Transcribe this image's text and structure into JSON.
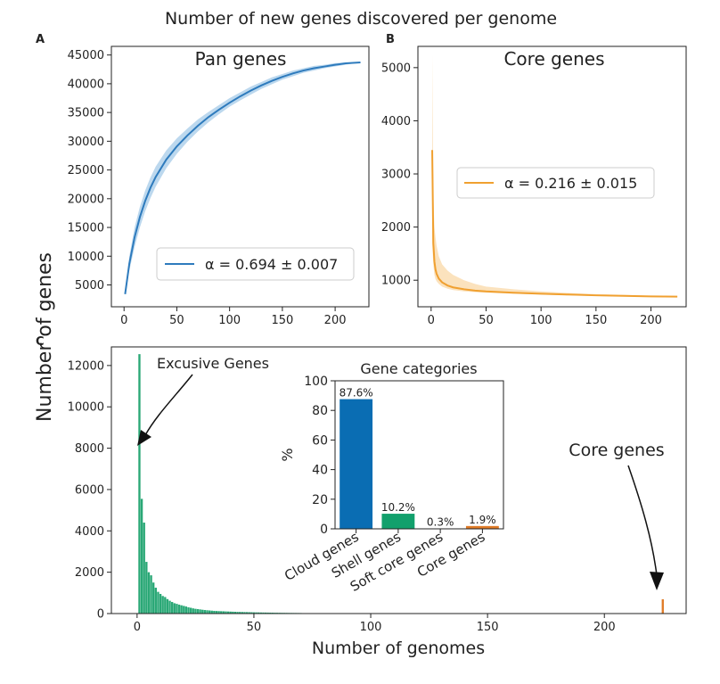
{
  "figure": {
    "suptitle": "Number of new genes discovered per genome",
    "shared_ylabel": "Number of genes",
    "colors": {
      "pan": "#2e7bbd",
      "pan_band": "#bcd8ee",
      "core": "#f0a030",
      "core_band": "#fbe2bd",
      "hist": "#2aa876",
      "core_bar": "#e07b27",
      "cloud_bar": "#0a6db3",
      "shell_bar": "#12a06c",
      "soft_bar": "#e07b27",
      "corecat_bar": "#e07b27"
    }
  },
  "chart_data": [
    {
      "panel": "A",
      "type": "line",
      "title": "Pan genes",
      "xlim": [
        -12,
        232
      ],
      "ylim": [
        1200,
        46500
      ],
      "xticks": [
        0,
        50,
        100,
        150,
        200
      ],
      "yticks": [
        5000,
        10000,
        15000,
        20000,
        25000,
        30000,
        35000,
        40000,
        45000
      ],
      "series": [
        {
          "name": "α = 0.694 ± 0.007",
          "x": [
            1,
            5,
            10,
            15,
            20,
            25,
            30,
            40,
            50,
            60,
            70,
            80,
            90,
            100,
            110,
            120,
            130,
            140,
            150,
            160,
            170,
            180,
            190,
            200,
            210,
            224
          ],
          "y": [
            3400,
            8700,
            13300,
            16800,
            19600,
            21900,
            23800,
            26800,
            29100,
            31000,
            32700,
            34200,
            35500,
            36700,
            37800,
            38800,
            39700,
            40500,
            41200,
            41800,
            42300,
            42700,
            43000,
            43300,
            43550,
            43700
          ],
          "lower": [
            3400,
            7500,
            11600,
            15000,
            17800,
            20100,
            22100,
            25300,
            27800,
            29900,
            31700,
            33300,
            34700,
            36000,
            37100,
            38100,
            39100,
            39900,
            40700,
            41300,
            41900,
            42300,
            42700,
            43000,
            43300,
            43700
          ],
          "upper": [
            3400,
            10000,
            15000,
            18600,
            21400,
            23700,
            25600,
            28400,
            30500,
            32200,
            33800,
            35100,
            36300,
            37500,
            38500,
            39500,
            40300,
            41100,
            41700,
            42300,
            42700,
            43100,
            43300,
            43600,
            43700,
            43700
          ]
        }
      ]
    },
    {
      "panel": "B",
      "type": "line",
      "title": "Core genes",
      "xlim": [
        -12,
        232
      ],
      "ylim": [
        500,
        5400
      ],
      "xticks": [
        0,
        50,
        100,
        150,
        200
      ],
      "yticks": [
        1000,
        2000,
        3000,
        4000,
        5000
      ],
      "series": [
        {
          "name": "α = 0.216 ± 0.015",
          "x": [
            1,
            2,
            3,
            4,
            5,
            7,
            10,
            15,
            20,
            30,
            40,
            50,
            75,
            100,
            125,
            150,
            175,
            200,
            224
          ],
          "y": [
            3450,
            1700,
            1350,
            1200,
            1120,
            1030,
            960,
            900,
            865,
            830,
            805,
            790,
            765,
            745,
            730,
            715,
            705,
            695,
            690
          ],
          "lower": [
            1700,
            1300,
            1100,
            1020,
            980,
            930,
            880,
            840,
            815,
            790,
            775,
            765,
            745,
            730,
            715,
            705,
            695,
            688,
            685
          ],
          "upper": [
            5250,
            2600,
            2000,
            1800,
            1650,
            1450,
            1300,
            1180,
            1100,
            1000,
            930,
            880,
            830,
            790,
            760,
            740,
            725,
            705,
            695
          ]
        }
      ]
    },
    {
      "panel": "C",
      "type": "bar",
      "xlabel": "Number of genomes",
      "xlim": [
        -11,
        235
      ],
      "ylim": [
        0,
        12900
      ],
      "xticks": [
        0,
        50,
        100,
        150,
        200
      ],
      "yticks": [
        0,
        2000,
        4000,
        6000,
        8000,
        10000,
        12000
      ],
      "x": [
        1,
        2,
        3,
        4,
        5,
        6,
        7,
        8,
        9,
        10,
        11,
        12,
        13,
        14,
        15,
        16,
        17,
        18,
        19,
        20,
        21,
        22,
        23,
        24,
        25,
        26,
        27,
        28,
        29,
        30,
        31,
        32,
        33,
        34,
        35,
        36,
        37,
        38,
        39,
        40,
        41,
        42,
        43,
        44,
        45,
        46,
        47,
        48,
        49,
        50,
        51,
        52,
        53,
        54,
        55,
        56,
        57,
        58,
        59,
        60,
        61,
        62,
        63,
        64,
        65,
        66,
        67,
        68,
        69,
        70,
        225
      ],
      "values": [
        12550,
        5550,
        4400,
        2500,
        2000,
        1850,
        1500,
        1250,
        1050,
        950,
        850,
        800,
        700,
        620,
        560,
        500,
        470,
        430,
        400,
        370,
        340,
        300,
        280,
        250,
        230,
        215,
        200,
        185,
        170,
        160,
        150,
        140,
        130,
        125,
        120,
        115,
        110,
        105,
        100,
        95,
        90,
        85,
        80,
        78,
        75,
        72,
        70,
        66,
        63,
        60,
        57,
        55,
        52,
        50,
        48,
        46,
        44,
        42,
        40,
        38,
        36,
        35,
        33,
        32,
        30,
        29,
        28,
        27,
        26,
        25,
        690
      ],
      "annotations": [
        "Excusive Genes",
        "Core genes"
      ]
    },
    {
      "panel": "C-inset",
      "type": "bar",
      "title": "Gene categories",
      "ylabel": "%",
      "ylim": [
        0,
        100
      ],
      "yticks": [
        0,
        20,
        40,
        60,
        80,
        100
      ],
      "categories": [
        "Cloud genes",
        "Shell genes",
        "Soft core genes",
        "Core genes"
      ],
      "values": [
        87.6,
        10.2,
        0.3,
        1.9
      ],
      "data_labels": [
        "87.6%",
        "10.2%",
        "0.3%",
        "1.9%"
      ]
    }
  ]
}
